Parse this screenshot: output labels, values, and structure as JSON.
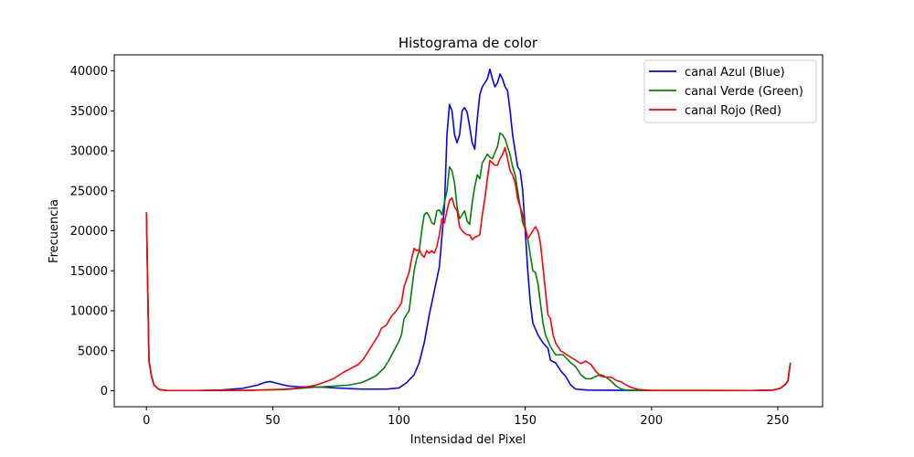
{
  "chart_data": {
    "type": "line",
    "title": "Histograma de color",
    "xlabel": "Intensidad del Pixel",
    "ylabel": "Frecuencia",
    "xlim": [
      -12.75,
      267.75
    ],
    "ylim": [
      -2000,
      42000
    ],
    "xticks": [
      0,
      50,
      100,
      150,
      200,
      250
    ],
    "yticks": [
      0,
      5000,
      10000,
      15000,
      20000,
      25000,
      30000,
      35000,
      40000
    ],
    "legend_position": "top-right",
    "grid": false,
    "series": [
      {
        "name": "canal Azul (Blue)",
        "color": "#0000ff",
        "points": [
          [
            0,
            22300
          ],
          [
            1,
            3800
          ],
          [
            2,
            1800
          ],
          [
            3,
            700
          ],
          [
            5,
            150
          ],
          [
            8,
            40
          ],
          [
            20,
            30
          ],
          [
            30,
            100
          ],
          [
            38,
            300
          ],
          [
            44,
            700
          ],
          [
            47,
            1050
          ],
          [
            49,
            1150
          ],
          [
            52,
            900
          ],
          [
            56,
            600
          ],
          [
            60,
            500
          ],
          [
            70,
            450
          ],
          [
            75,
            350
          ],
          [
            85,
            200
          ],
          [
            95,
            200
          ],
          [
            100,
            350
          ],
          [
            103,
            1000
          ],
          [
            106,
            2000
          ],
          [
            108,
            3500
          ],
          [
            110,
            6000
          ],
          [
            112,
            9500
          ],
          [
            114,
            12500
          ],
          [
            116,
            15500
          ],
          [
            118,
            23000
          ],
          [
            119,
            32000
          ],
          [
            120,
            35800
          ],
          [
            121,
            35000
          ],
          [
            122,
            32000
          ],
          [
            123,
            31000
          ],
          [
            124,
            32000
          ],
          [
            125,
            35000
          ],
          [
            126,
            35400
          ],
          [
            127,
            34800
          ],
          [
            128,
            33000
          ],
          [
            129,
            31000
          ],
          [
            130,
            30200
          ],
          [
            131,
            34000
          ],
          [
            132,
            37000
          ],
          [
            133,
            38000
          ],
          [
            134,
            38500
          ],
          [
            135,
            39000
          ],
          [
            136,
            40200
          ],
          [
            137,
            39000
          ],
          [
            138,
            38000
          ],
          [
            139,
            38500
          ],
          [
            140,
            39600
          ],
          [
            141,
            39000
          ],
          [
            142,
            38000
          ],
          [
            143,
            37500
          ],
          [
            144,
            35000
          ],
          [
            145,
            32000
          ],
          [
            146,
            30000
          ],
          [
            147,
            28000
          ],
          [
            148,
            27500
          ],
          [
            149,
            25000
          ],
          [
            150,
            20000
          ],
          [
            151,
            15000
          ],
          [
            152,
            11000
          ],
          [
            153,
            8500
          ],
          [
            155,
            7000
          ],
          [
            157,
            6000
          ],
          [
            159,
            5300
          ],
          [
            160,
            3800
          ],
          [
            162,
            3500
          ],
          [
            164,
            2500
          ],
          [
            166,
            1800
          ],
          [
            168,
            700
          ],
          [
            170,
            200
          ],
          [
            175,
            80
          ],
          [
            190,
            50
          ],
          [
            200,
            30
          ],
          [
            240,
            30
          ],
          [
            248,
            80
          ],
          [
            251,
            300
          ],
          [
            253,
            800
          ],
          [
            254,
            1200
          ],
          [
            255,
            3500
          ]
        ]
      },
      {
        "name": "canal Verde (Green)",
        "color": "#008000",
        "points": [
          [
            0,
            22300
          ],
          [
            1,
            3800
          ],
          [
            2,
            1800
          ],
          [
            3,
            700
          ],
          [
            5,
            150
          ],
          [
            8,
            40
          ],
          [
            20,
            30
          ],
          [
            40,
            50
          ],
          [
            55,
            150
          ],
          [
            65,
            400
          ],
          [
            75,
            600
          ],
          [
            80,
            700
          ],
          [
            85,
            1000
          ],
          [
            88,
            1400
          ],
          [
            91,
            1900
          ],
          [
            94,
            2800
          ],
          [
            96,
            3800
          ],
          [
            98,
            5000
          ],
          [
            100,
            6200
          ],
          [
            101,
            7000
          ],
          [
            102,
            9000
          ],
          [
            104,
            10000
          ],
          [
            105,
            12500
          ],
          [
            106,
            15000
          ],
          [
            107,
            16500
          ],
          [
            108,
            17500
          ],
          [
            109,
            20000
          ],
          [
            110,
            22000
          ],
          [
            111,
            22300
          ],
          [
            112,
            21800
          ],
          [
            113,
            21000
          ],
          [
            114,
            20800
          ],
          [
            115,
            22500
          ],
          [
            116,
            22600
          ],
          [
            117,
            22000
          ],
          [
            118,
            23500
          ],
          [
            119,
            25000
          ],
          [
            120,
            28000
          ],
          [
            121,
            27500
          ],
          [
            122,
            26000
          ],
          [
            123,
            23000
          ],
          [
            124,
            21500
          ],
          [
            125,
            22000
          ],
          [
            126,
            22500
          ],
          [
            127,
            21200
          ],
          [
            128,
            20800
          ],
          [
            129,
            23500
          ],
          [
            130,
            25500
          ],
          [
            131,
            27000
          ],
          [
            132,
            26500
          ],
          [
            133,
            28500
          ],
          [
            134,
            29000
          ],
          [
            135,
            29600
          ],
          [
            136,
            29200
          ],
          [
            137,
            29000
          ],
          [
            138,
            29800
          ],
          [
            139,
            30500
          ],
          [
            140,
            32200
          ],
          [
            141,
            32000
          ],
          [
            142,
            31500
          ],
          [
            143,
            30500
          ],
          [
            144,
            29500
          ],
          [
            145,
            28000
          ],
          [
            146,
            27000
          ],
          [
            147,
            25000
          ],
          [
            148,
            23000
          ],
          [
            149,
            21000
          ],
          [
            150,
            20200
          ],
          [
            151,
            19000
          ],
          [
            152,
            17000
          ],
          [
            153,
            15000
          ],
          [
            154,
            14800
          ],
          [
            155,
            13500
          ],
          [
            156,
            11000
          ],
          [
            157,
            8500
          ],
          [
            158,
            7000
          ],
          [
            160,
            5500
          ],
          [
            162,
            4500
          ],
          [
            165,
            4500
          ],
          [
            168,
            3500
          ],
          [
            170,
            3000
          ],
          [
            172,
            2000
          ],
          [
            174,
            1500
          ],
          [
            176,
            1500
          ],
          [
            178,
            1800
          ],
          [
            180,
            2000
          ],
          [
            182,
            1700
          ],
          [
            184,
            1200
          ],
          [
            186,
            600
          ],
          [
            188,
            200
          ],
          [
            190,
            80
          ],
          [
            200,
            40
          ],
          [
            240,
            30
          ],
          [
            248,
            80
          ],
          [
            251,
            300
          ],
          [
            253,
            800
          ],
          [
            254,
            1200
          ],
          [
            255,
            3500
          ]
        ]
      },
      {
        "name": "canal Rojo (Red)",
        "color": "#ff0000",
        "points": [
          [
            0,
            22300
          ],
          [
            1,
            3800
          ],
          [
            2,
            1800
          ],
          [
            3,
            700
          ],
          [
            5,
            150
          ],
          [
            8,
            40
          ],
          [
            20,
            30
          ],
          [
            40,
            50
          ],
          [
            55,
            200
          ],
          [
            62,
            400
          ],
          [
            67,
            700
          ],
          [
            70,
            1000
          ],
          [
            74,
            1500
          ],
          [
            78,
            2300
          ],
          [
            81,
            2800
          ],
          [
            84,
            3300
          ],
          [
            86,
            4000
          ],
          [
            88,
            5000
          ],
          [
            90,
            6000
          ],
          [
            92,
            7000
          ],
          [
            93,
            7800
          ],
          [
            95,
            8200
          ],
          [
            97,
            9300
          ],
          [
            99,
            10000
          ],
          [
            101,
            11000
          ],
          [
            102,
            13000
          ],
          [
            104,
            14800
          ],
          [
            105,
            16500
          ],
          [
            106,
            17800
          ],
          [
            107,
            17500
          ],
          [
            108,
            17700
          ],
          [
            109,
            17000
          ],
          [
            110,
            16700
          ],
          [
            111,
            17500
          ],
          [
            112,
            17200
          ],
          [
            113,
            17500
          ],
          [
            114,
            17200
          ],
          [
            115,
            18000
          ],
          [
            116,
            19500
          ],
          [
            117,
            21500
          ],
          [
            118,
            21000
          ],
          [
            119,
            22500
          ],
          [
            120,
            23800
          ],
          [
            121,
            24100
          ],
          [
            122,
            23000
          ],
          [
            123,
            22500
          ],
          [
            124,
            20500
          ],
          [
            125,
            20000
          ],
          [
            126,
            19700
          ],
          [
            127,
            19500
          ],
          [
            128,
            19500
          ],
          [
            129,
            18900
          ],
          [
            130,
            19200
          ],
          [
            131,
            19300
          ],
          [
            132,
            19500
          ],
          [
            133,
            22000
          ],
          [
            134,
            24000
          ],
          [
            135,
            26500
          ],
          [
            136,
            28800
          ],
          [
            137,
            28500
          ],
          [
            138,
            28200
          ],
          [
            139,
            28200
          ],
          [
            140,
            29000
          ],
          [
            141,
            29500
          ],
          [
            142,
            30400
          ],
          [
            143,
            29000
          ],
          [
            144,
            27500
          ],
          [
            145,
            27000
          ],
          [
            146,
            26000
          ],
          [
            147,
            24000
          ],
          [
            148,
            23000
          ],
          [
            149,
            22000
          ],
          [
            150,
            20500
          ],
          [
            151,
            19000
          ],
          [
            152,
            19500
          ],
          [
            153,
            20000
          ],
          [
            154,
            20500
          ],
          [
            155,
            20000
          ],
          [
            156,
            18500
          ],
          [
            157,
            15500
          ],
          [
            158,
            12500
          ],
          [
            159,
            9500
          ],
          [
            160,
            9000
          ],
          [
            161,
            7000
          ],
          [
            162,
            6000
          ],
          [
            164,
            5000
          ],
          [
            166,
            4600
          ],
          [
            168,
            4200
          ],
          [
            170,
            3800
          ],
          [
            172,
            3400
          ],
          [
            174,
            3700
          ],
          [
            176,
            3300
          ],
          [
            178,
            2400
          ],
          [
            180,
            1800
          ],
          [
            182,
            1700
          ],
          [
            184,
            1700
          ],
          [
            186,
            1300
          ],
          [
            188,
            1100
          ],
          [
            190,
            700
          ],
          [
            192,
            400
          ],
          [
            195,
            150
          ],
          [
            200,
            50
          ],
          [
            240,
            30
          ],
          [
            248,
            80
          ],
          [
            251,
            300
          ],
          [
            253,
            800
          ],
          [
            254,
            1200
          ],
          [
            255,
            3500
          ]
        ]
      }
    ]
  }
}
